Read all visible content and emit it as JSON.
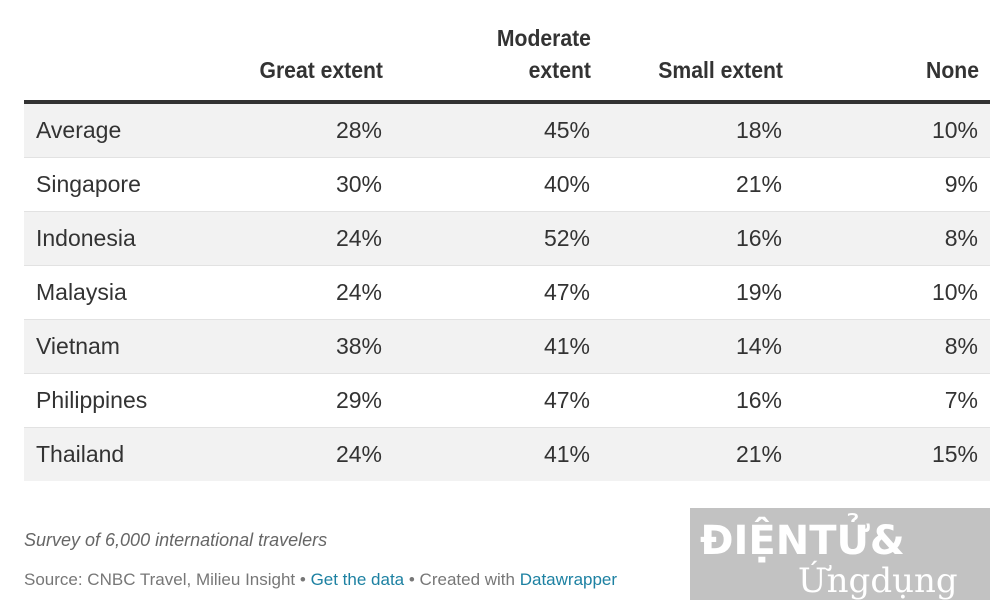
{
  "chart_data": {
    "type": "table",
    "columns": [
      "",
      "Great extent",
      "Moderate extent",
      "Small extent",
      "None"
    ],
    "header_lines": [
      [
        ""
      ],
      [
        "Great extent"
      ],
      [
        "Moderate",
        "extent"
      ],
      [
        "Small extent"
      ],
      [
        "None"
      ]
    ],
    "rows": [
      {
        "label": "Average",
        "values": [
          "28%",
          "45%",
          "18%",
          "10%"
        ]
      },
      {
        "label": "Singapore",
        "values": [
          "30%",
          "40%",
          "21%",
          "9%"
        ]
      },
      {
        "label": "Indonesia",
        "values": [
          "24%",
          "52%",
          "16%",
          "8%"
        ]
      },
      {
        "label": "Malaysia",
        "values": [
          "24%",
          "47%",
          "19%",
          "10%"
        ]
      },
      {
        "label": "Vietnam",
        "values": [
          "38%",
          "41%",
          "14%",
          "8%"
        ]
      },
      {
        "label": "Philippines",
        "values": [
          "29%",
          "47%",
          "16%",
          "7%"
        ]
      },
      {
        "label": "Thailand",
        "values": [
          "24%",
          "41%",
          "21%",
          "15%"
        ]
      }
    ]
  },
  "notes": "Survey of 6,000 international travelers",
  "source": {
    "prefix": "Source: CNBC Travel, Milieu Insight",
    "separator": " • ",
    "get_data_link": "Get the data",
    "created_with": "Created with",
    "datawrapper_link": "Datawrapper"
  },
  "watermark": {
    "line1": "ĐIỆNTỬ&",
    "line2": "Ứngdụng"
  },
  "colors": {
    "text": "#333333",
    "stripe": "#f2f2f2",
    "link": "#1d81a2",
    "watermark_bg": "#b8b8b8"
  }
}
